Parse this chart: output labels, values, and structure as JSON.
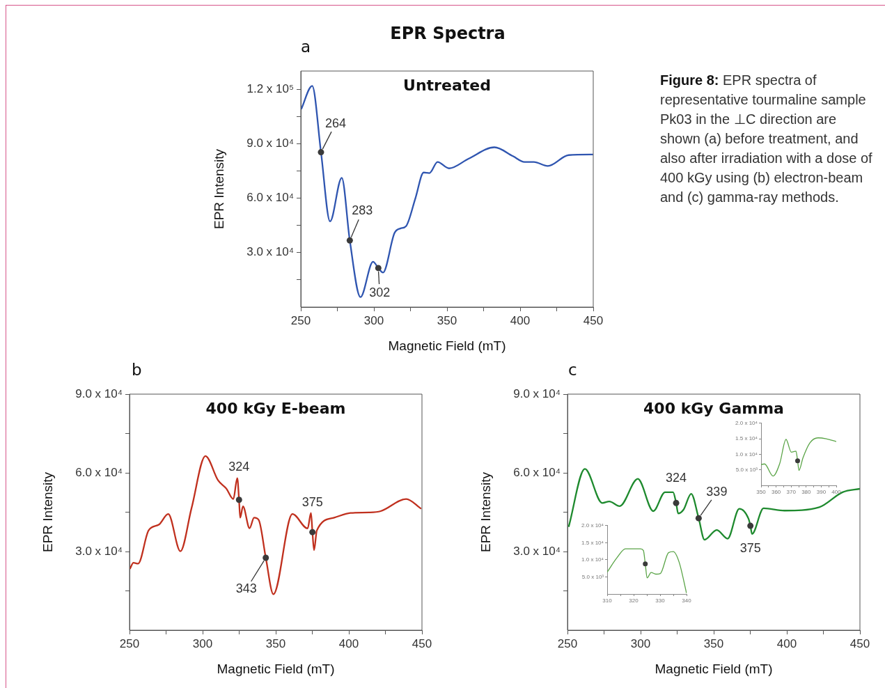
{
  "chart_data": [
    {
      "type": "line",
      "title": "EPR Spectra",
      "subtitle": "Untreated",
      "xlabel": "Magnetic Field (mT)",
      "ylabel": "EPR Intensity",
      "xlim": [
        250,
        450
      ],
      "ylim": [
        0,
        130000
      ],
      "xticks": [
        250,
        {
          "value": 275,
          "label": null
        },
        300,
        {
          "value": 325,
          "label": null
        },
        350,
        {
          "value": 375,
          "label": null
        },
        400,
        {
          "value": 425,
          "label": null
        },
        450
      ],
      "yticks": [
        {
          "value": 15000,
          "label": null
        },
        {
          "value": 30000,
          "label": "3.0 x 10⁴"
        },
        {
          "value": 45000,
          "label": null
        },
        {
          "value": 60000,
          "label": "6.0 x 10⁴"
        },
        {
          "value": 75000,
          "label": null
        },
        {
          "value": 90000,
          "label": "9.0 x 10⁴"
        },
        {
          "value": 105000,
          "label": null
        },
        {
          "value": 120000,
          "label": "1.2 x 10⁵"
        }
      ],
      "series": [
        {
          "type": "line",
          "color": "#2f55b0",
          "marker": "none",
          "x": [
            250.3,
            257.8,
            263.8,
            270,
            278,
            283.5,
            290.8,
            299.4,
            303,
            306.2,
            314.1,
            318.1,
            322,
            328.4,
            334,
            338,
            343.5,
            351.4,
            364.9,
            382.4,
            395.1,
            403,
            409.4,
            418.9,
            433.2,
            449.9
          ],
          "values": [
            109000,
            121800,
            85300,
            47200,
            71200,
            36700,
            5500,
            25000,
            21500,
            19000,
            40800,
            43300,
            44600,
            60000,
            74100,
            73800,
            79900,
            76400,
            81800,
            88000,
            83100,
            79900,
            79900,
            77700,
            83700,
            84000
          ]
        },
        {
          "type": "scatter",
          "color": "#3a3a3a",
          "marker": "circle",
          "x": [
            263.8,
            283.5,
            303
          ],
          "values": [
            85300,
            36700,
            21500
          ]
        }
      ],
      "annotations": [
        "a",
        {
          "text": "264",
          "x": 263.8,
          "y": 85300
        },
        {
          "text": "283",
          "x": 283.5,
          "y": 36700
        },
        {
          "text": "302",
          "x": 303,
          "y": 21500
        }
      ]
    },
    {
      "type": "line",
      "title": "400 kGy E-beam",
      "xlabel": "Magnetic Field (mT)",
      "ylabel": "EPR Intensity",
      "xlim": [
        250,
        450
      ],
      "ylim": [
        0,
        90000
      ],
      "xticks": [
        250,
        {
          "value": 275,
          "label": null
        },
        300,
        {
          "value": 325,
          "label": null
        },
        350,
        {
          "value": 375,
          "label": null
        },
        400,
        {
          "value": 425,
          "label": null
        },
        450
      ],
      "yticks": [
        {
          "value": 15000,
          "label": null
        },
        {
          "value": 30000,
          "label": "3.0 x 10⁴"
        },
        {
          "value": 45000,
          "label": null
        },
        {
          "value": 60000,
          "label": "6.0 x 10⁴"
        },
        {
          "value": 75000,
          "label": null
        },
        {
          "value": 90000,
          "label": "9.0 x 10⁴"
        }
      ],
      "series": [
        {
          "type": "line",
          "color": "#c0301e",
          "marker": "none",
          "x": [
            250.3,
            252.7,
            255.9,
            263,
            270.2,
            276.5,
            284.8,
            292.4,
            301.9,
            310.6,
            316.2,
            321,
            323.7,
            324.9,
            325.7,
            327.6,
            332.1,
            335.2,
            338.4,
            343.2,
            348.4,
            361.4,
            371.8,
            374.1,
            375.1,
            376.2,
            378.1,
            390,
            401.1,
            413.8,
            421.8,
            439.2,
            449.5
          ],
          "values": [
            23400,
            25700,
            25400,
            38000,
            40300,
            44300,
            30100,
            46500,
            66400,
            57100,
            54000,
            50000,
            58000,
            49700,
            42900,
            47200,
            38900,
            42900,
            42000,
            27600,
            13700,
            44300,
            38800,
            44700,
            37400,
            30500,
            38000,
            42900,
            44700,
            44900,
            45400,
            50000,
            46300
          ]
        },
        {
          "type": "scatter",
          "color": "#3a3a3a",
          "marker": "circle",
          "x": [
            324.9,
            343.2,
            375.1
          ],
          "values": [
            49700,
            27600,
            37400
          ]
        }
      ],
      "annotations": [
        "b",
        {
          "text": "324",
          "x": 324.9,
          "y": 49700
        },
        {
          "text": "343",
          "x": 343.2,
          "y": 27600
        },
        {
          "text": "375",
          "x": 375.1,
          "y": 37400
        }
      ]
    },
    {
      "type": "line",
      "title": "400 kGy Gamma",
      "xlabel": "Magnetic Field (mT)",
      "ylabel": "EPR Intensity",
      "xlim": [
        250,
        450
      ],
      "ylim": [
        0,
        90000
      ],
      "xticks": [
        250,
        {
          "value": 275,
          "label": null
        },
        300,
        {
          "value": 325,
          "label": null
        },
        350,
        {
          "value": 375,
          "label": null
        },
        400,
        {
          "value": 425,
          "label": null
        },
        450
      ],
      "yticks": [
        {
          "value": 15000,
          "label": null
        },
        {
          "value": 30000,
          "label": "3.0 x 10⁴"
        },
        {
          "value": 45000,
          "label": null
        },
        {
          "value": 60000,
          "label": "6.0 x 10⁴"
        },
        {
          "value": 75000,
          "label": null
        },
        {
          "value": 90000,
          "label": "9.0 x 10⁴"
        }
      ],
      "series": [
        {
          "type": "line",
          "color": "#1e8a2e",
          "marker": "none",
          "x": [
            250.8,
            261.9,
            273.8,
            278.6,
            285.7,
            298.1,
            308.7,
            316.7,
            322.2,
            324.3,
            325.7,
            329.4,
            334.6,
            339.7,
            343.7,
            352.1,
            359.5,
            367.5,
            373.8,
            375.1,
            376.2,
            384.1,
            398.4,
            422.2,
            438.1,
            450
          ],
          "values": [
            39400,
            61500,
            48500,
            49100,
            47300,
            57700,
            45400,
            52600,
            52600,
            48500,
            44500,
            46000,
            52000,
            42700,
            34500,
            38200,
            34900,
            46300,
            42500,
            39800,
            36700,
            46500,
            45600,
            46900,
            52600,
            53900
          ]
        },
        {
          "type": "scatter",
          "color": "#3a3a3a",
          "marker": "circle",
          "x": [
            324.3,
            339.7,
            375.1
          ],
          "values": [
            48500,
            42700,
            39800
          ]
        }
      ],
      "annotations": [
        "c",
        {
          "text": "324",
          "x": 324.3,
          "y": 48500
        },
        {
          "text": "339",
          "x": 339.7,
          "y": 42700
        },
        {
          "text": "375",
          "x": 375.1,
          "y": 39800
        }
      ]
    },
    {
      "type": "line",
      "xlim": [
        350,
        400
      ],
      "ylim": [
        0,
        20000
      ],
      "xticks": [
        350,
        {
          "value": 355,
          "label": null
        },
        360,
        {
          "value": 365,
          "label": null
        },
        370,
        {
          "value": 375,
          "label": null
        },
        380,
        {
          "value": 385,
          "label": null
        },
        390,
        {
          "value": 395,
          "label": null
        },
        400
      ],
      "yticks": [
        {
          "value": 5000,
          "label": "5.0 x 10³"
        },
        {
          "value": 10000,
          "label": "1.0 x 10⁴"
        },
        {
          "value": 15000,
          "label": "1.5 x 10⁴"
        },
        {
          "value": 20000,
          "label": "2.0 x 10⁴"
        }
      ],
      "series": [
        {
          "type": "line",
          "color": "#5aa447",
          "marker": "none",
          "x": [
            350,
            352.3,
            358,
            362.4,
            366.6,
            370.1,
            373.2,
            374.3,
            375.2,
            377.9,
            382.5,
            387.9,
            393.3,
            400
          ],
          "values": [
            6700,
            6900,
            3000,
            7000,
            14800,
            10700,
            11000,
            7900,
            4800,
            8900,
            13700,
            15300,
            15000,
            14100
          ]
        },
        {
          "type": "scatter",
          "color": "#3a3a3a",
          "marker": "circle",
          "x": [
            374.3
          ],
          "values": [
            7900
          ]
        }
      ]
    },
    {
      "type": "line",
      "xlim": [
        310,
        340
      ],
      "ylim": [
        0,
        20000
      ],
      "xticks": [
        310,
        {
          "value": 315,
          "label": null
        },
        320,
        {
          "value": 325,
          "label": null
        },
        330,
        {
          "value": 335,
          "label": null
        },
        340
      ],
      "yticks": [
        {
          "value": 5000,
          "label": "5.0 x 10³"
        },
        {
          "value": 10000,
          "label": "1.0 x 10⁴"
        },
        {
          "value": 15000,
          "label": "1.5 x 10⁴"
        },
        {
          "value": 20000,
          "label": "2.0 x 10⁴"
        }
      ],
      "series": [
        {
          "type": "line",
          "color": "#5aa447",
          "marker": "none",
          "x": [
            310,
            313.8,
            316.9,
            322.6,
            323.7,
            324.4,
            325.1,
            326.6,
            328.4,
            330.1,
            333.2,
            335,
            337.2,
            340
          ],
          "values": [
            6400,
            10700,
            13200,
            13200,
            12700,
            8800,
            4700,
            6300,
            5800,
            6000,
            12100,
            12400,
            9300,
            200
          ]
        },
        {
          "type": "scatter",
          "color": "#3a3a3a",
          "marker": "circle",
          "x": [
            324.4
          ],
          "values": [
            8800
          ]
        }
      ]
    },
    {
      "type": "other",
      "title": "Figure 8:",
      "annotations": [
        "EPR spectra of representative tourmaline sample Pk03 in the ⊥C direction are shown (a) before treatment, and also after irradiation with a dose of 400 kGy using (b) electron-beam and (c) gamma-ray methods."
      ]
    }
  ]
}
